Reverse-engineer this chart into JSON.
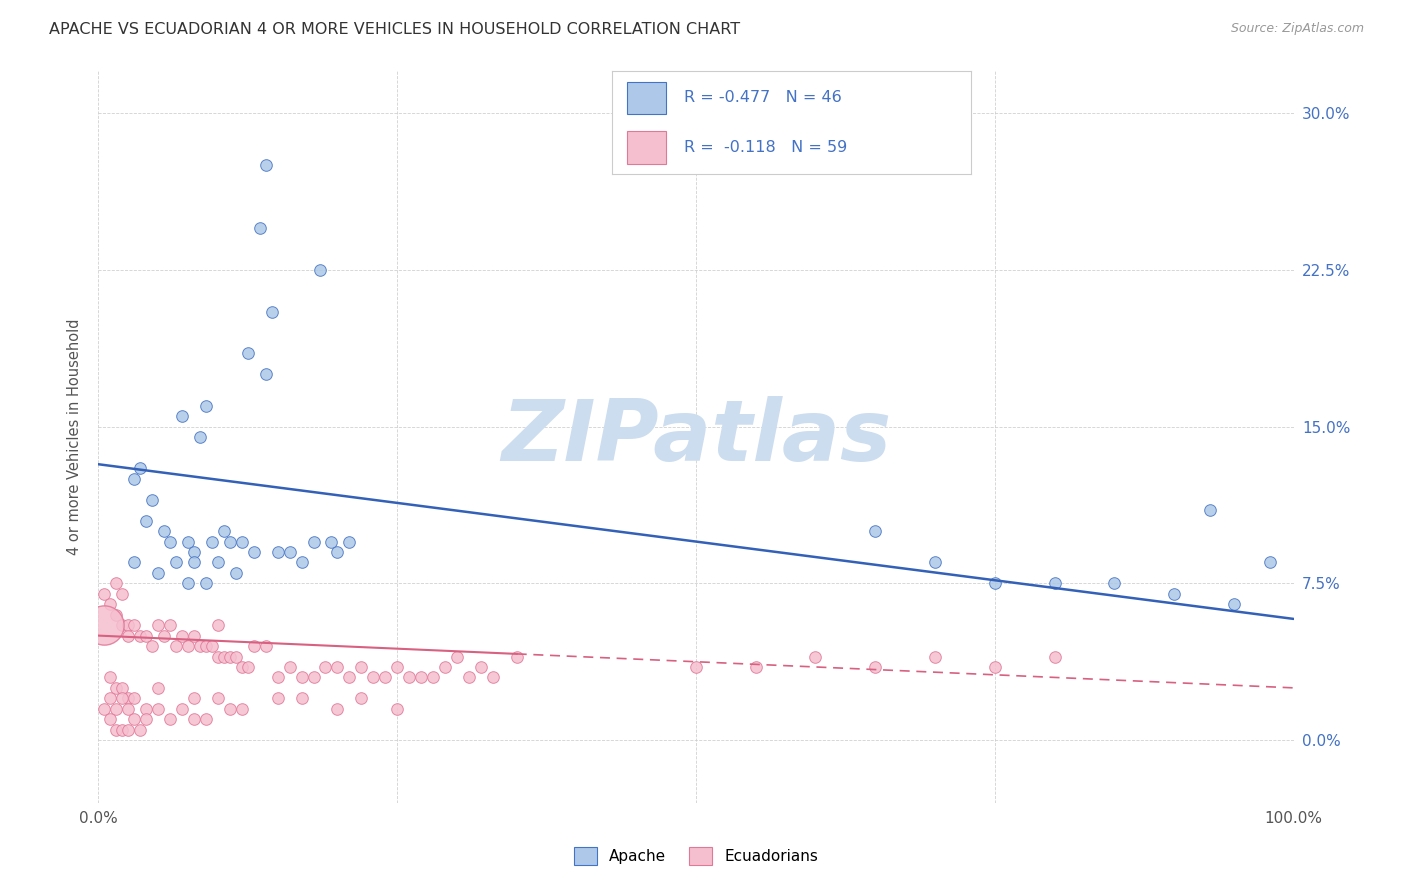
{
  "title": "APACHE VS ECUADORIAN 4 OR MORE VEHICLES IN HOUSEHOLD CORRELATION CHART",
  "source": "Source: ZipAtlas.com",
  "ylabel": "4 or more Vehicles in Household",
  "xlim": [
    0,
    100
  ],
  "ylim": [
    -3,
    32
  ],
  "xticks": [
    0,
    25,
    50,
    75,
    100
  ],
  "xticklabels": [
    "0.0%",
    "",
    "",
    "",
    "100.0%"
  ],
  "yticks": [
    0,
    7.5,
    15.0,
    22.5,
    30.0
  ],
  "yticklabels": [
    "0.0%",
    "7.5%",
    "15.0%",
    "22.5%",
    "30.0%"
  ],
  "apache_face_color": "#adc8e8",
  "apache_edge_color": "#4472c4",
  "ecuadorian_face_color": "#f5bfcf",
  "ecuadorian_edge_color": "#e07898",
  "apache_line_color": "#3461b8",
  "ecuadorian_line_color": "#d86080",
  "apache_R": -0.477,
  "apache_N": 46,
  "ecuadorian_R": -0.118,
  "ecuadorian_N": 59,
  "watermark": "ZIPatlas",
  "watermark_color": "#ccddef",
  "legend_label_apache": "Apache",
  "legend_label_ecuadorian": "Ecuadorians",
  "apache_trend_x0": 0,
  "apache_trend_y0": 13.2,
  "apache_trend_x1": 100,
  "apache_trend_y1": 5.8,
  "ecuadorian_trend_x0": 0,
  "ecuadorian_trend_y0": 5.0,
  "ecuadorian_trend_x1": 100,
  "ecuadorian_trend_y1": 2.5,
  "apache_pts_x": [
    8.5,
    14.0,
    13.5,
    18.5,
    14.5,
    12.5,
    14.0,
    7.0,
    9.0,
    3.5,
    3.0,
    4.5,
    4.0,
    5.5,
    6.0,
    7.5,
    8.0,
    9.5,
    10.5,
    11.0,
    12.0,
    13.0,
    15.0,
    16.0,
    17.0,
    18.0,
    19.5,
    21.0,
    3.0,
    5.0,
    6.5,
    8.0,
    10.0,
    7.5,
    9.0,
    11.5,
    65.0,
    70.0,
    75.0,
    80.0,
    85.0,
    90.0,
    95.0,
    93.0,
    98.0,
    20.0
  ],
  "apache_pts_y": [
    14.5,
    27.5,
    24.5,
    22.5,
    20.5,
    18.5,
    17.5,
    15.5,
    16.0,
    13.0,
    12.5,
    11.5,
    10.5,
    10.0,
    9.5,
    9.5,
    9.0,
    9.5,
    10.0,
    9.5,
    9.5,
    9.0,
    9.0,
    9.0,
    8.5,
    9.5,
    9.5,
    9.5,
    8.5,
    8.0,
    8.5,
    8.5,
    8.5,
    7.5,
    7.5,
    8.0,
    10.0,
    8.5,
    7.5,
    7.5,
    7.5,
    7.0,
    6.5,
    11.0,
    8.5,
    9.0
  ],
  "ecuadorian_pts_x": [
    0.5,
    1.0,
    1.5,
    1.5,
    2.0,
    2.0,
    2.5,
    2.5,
    3.0,
    3.5,
    4.0,
    4.5,
    5.0,
    5.5,
    6.0,
    6.5,
    7.0,
    7.5,
    8.0,
    8.5,
    9.0,
    9.5,
    10.0,
    10.5,
    11.0,
    11.5,
    12.0,
    12.5,
    13.0,
    14.0,
    15.0,
    16.0,
    17.0,
    18.0,
    19.0,
    20.0,
    21.0,
    22.0,
    23.0,
    24.0,
    25.0,
    26.0,
    27.0,
    28.0,
    29.0,
    30.0,
    31.0,
    32.0,
    33.0,
    35.0,
    1.0,
    1.5,
    2.0,
    2.5,
    3.0,
    4.0,
    5.0,
    8.0,
    10.0
  ],
  "ecuadorian_pts_y": [
    7.0,
    6.5,
    7.5,
    6.0,
    7.0,
    5.5,
    5.5,
    5.0,
    5.5,
    5.0,
    5.0,
    4.5,
    5.5,
    5.0,
    5.5,
    4.5,
    5.0,
    4.5,
    5.0,
    4.5,
    4.5,
    4.5,
    4.0,
    4.0,
    4.0,
    4.0,
    3.5,
    3.5,
    4.5,
    4.5,
    3.0,
    3.5,
    3.0,
    3.0,
    3.5,
    3.5,
    3.0,
    3.5,
    3.0,
    3.0,
    3.5,
    3.0,
    3.0,
    3.0,
    3.5,
    4.0,
    3.0,
    3.5,
    3.0,
    4.0,
    3.0,
    2.5,
    2.5,
    2.0,
    2.0,
    1.5,
    2.5,
    2.0,
    5.5
  ],
  "ecuadorian_extra_x": [
    0.5,
    1.0,
    1.5,
    2.0,
    2.5,
    1.0,
    1.5,
    2.0,
    2.5,
    3.0,
    3.5,
    4.0,
    5.0,
    6.0,
    7.0,
    8.0,
    9.0,
    10.0,
    11.0,
    12.0,
    15.0,
    17.0,
    20.0,
    22.0,
    25.0,
    50.0,
    55.0,
    60.0,
    65.0,
    70.0,
    75.0,
    80.0
  ],
  "ecuadorian_extra_y": [
    1.5,
    2.0,
    1.5,
    2.0,
    1.5,
    1.0,
    0.5,
    0.5,
    0.5,
    1.0,
    0.5,
    1.0,
    1.5,
    1.0,
    1.5,
    1.0,
    1.0,
    2.0,
    1.5,
    1.5,
    2.0,
    2.0,
    1.5,
    2.0,
    1.5,
    3.5,
    3.5,
    4.0,
    3.5,
    4.0,
    3.5,
    4.0
  ],
  "ecuadorian_large_x": 0.5,
  "ecuadorian_large_y": 5.5,
  "ecuadorian_large_size": 800
}
